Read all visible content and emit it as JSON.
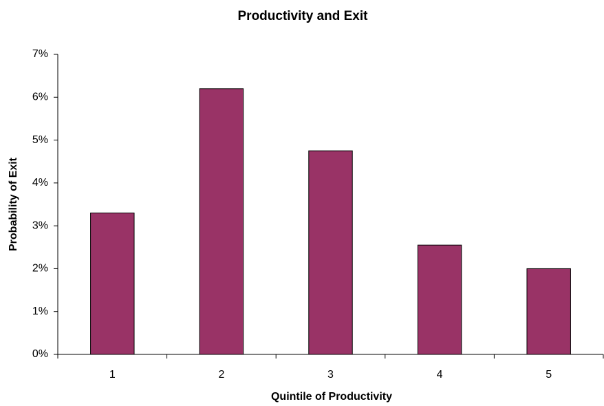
{
  "chart_data": {
    "type": "bar",
    "title": "Productivity and Exit",
    "x_label": "Quintile of Productivity",
    "y_label": "Probability of Exit",
    "categories": [
      "1",
      "2",
      "3",
      "4",
      "5"
    ],
    "values": [
      3.3,
      6.2,
      4.75,
      2.55,
      2.0
    ],
    "color": "#993366",
    "ylim": [
      0,
      7
    ],
    "yticks": [
      {
        "value": 0,
        "label": "0%"
      },
      {
        "value": 1,
        "label": "1%"
      },
      {
        "value": 2,
        "label": "2%"
      },
      {
        "value": 3,
        "label": "3%"
      },
      {
        "value": 4,
        "label": "4%"
      },
      {
        "value": 5,
        "label": "5%"
      },
      {
        "value": 6,
        "label": "6%"
      },
      {
        "value": 7,
        "label": "7%"
      }
    ],
    "grid": false
  }
}
